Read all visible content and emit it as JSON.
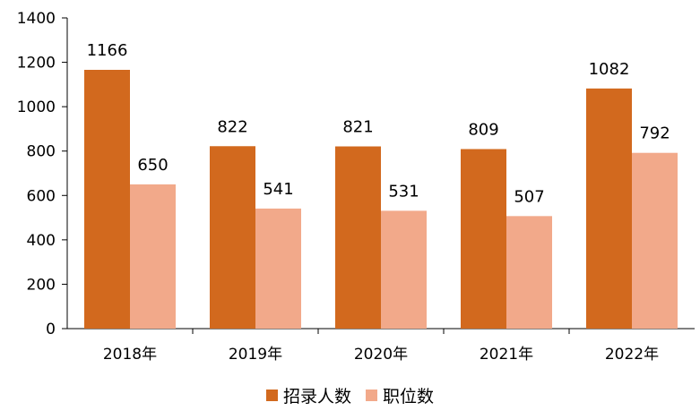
{
  "chart_data": {
    "type": "bar",
    "categories": [
      "2018年",
      "2019年",
      "2020年",
      "2021年",
      "2022年"
    ],
    "series": [
      {
        "name": "招录人数",
        "values": [
          1166,
          822,
          821,
          809,
          1082
        ],
        "color": "#D2691E"
      },
      {
        "name": "职位数",
        "values": [
          650,
          541,
          531,
          507,
          792
        ],
        "color": "#F2A98A"
      }
    ],
    "ylim": [
      0,
      1400
    ],
    "yticks": [
      0,
      200,
      400,
      600,
      800,
      1000,
      1200,
      1400
    ],
    "grid": false,
    "legend": "bottom"
  }
}
